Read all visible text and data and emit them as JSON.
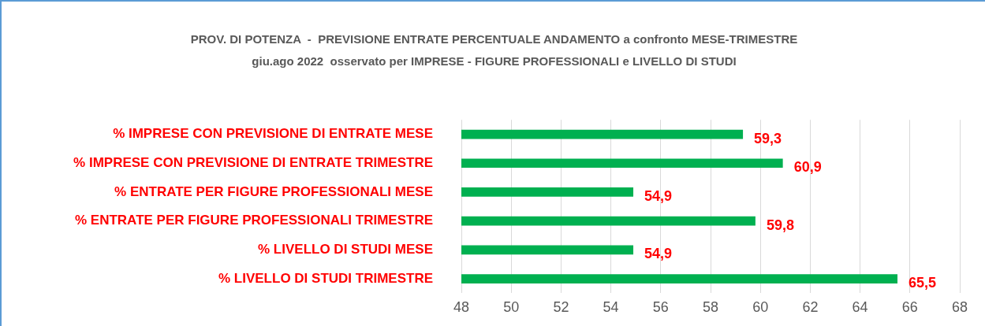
{
  "chart_data": {
    "type": "bar",
    "orientation": "horizontal",
    "title": "PROV. DI POTENZA  -  PREVISIONE ENTRATE PERCENTUALE ANDAMENTO a confronto MESE-TRIMESTRE",
    "subtitle": "giu.ago 2022  osservato per IMPRESE - FIGURE PROFESSIONALI e LIVELLO DI STUDI",
    "categories": [
      "% IMPRESE CON PREVISIONE DI ENTRATE MESE",
      "% IMPRESE CON PREVISIONE DI ENTRATE TRIMESTRE",
      "% ENTRATE PER FIGURE PROFESSIONALI MESE",
      "% ENTRATE PER FIGURE PROFESSIONALI TRIMESTRE",
      "% LIVELLO DI STUDI MESE",
      "% LIVELLO DI STUDI TRIMESTRE"
    ],
    "values": [
      59.3,
      60.9,
      54.9,
      59.8,
      54.9,
      65.5
    ],
    "value_labels": [
      "59,3",
      "60,9",
      "54,9",
      "59,8",
      "54,9",
      "65,5"
    ],
    "color": "#00b050",
    "xlim": [
      48,
      68
    ],
    "xticks": [
      48,
      50,
      52,
      54,
      56,
      58,
      60,
      62,
      64,
      66,
      68
    ],
    "grid": "x",
    "legend": false
  }
}
